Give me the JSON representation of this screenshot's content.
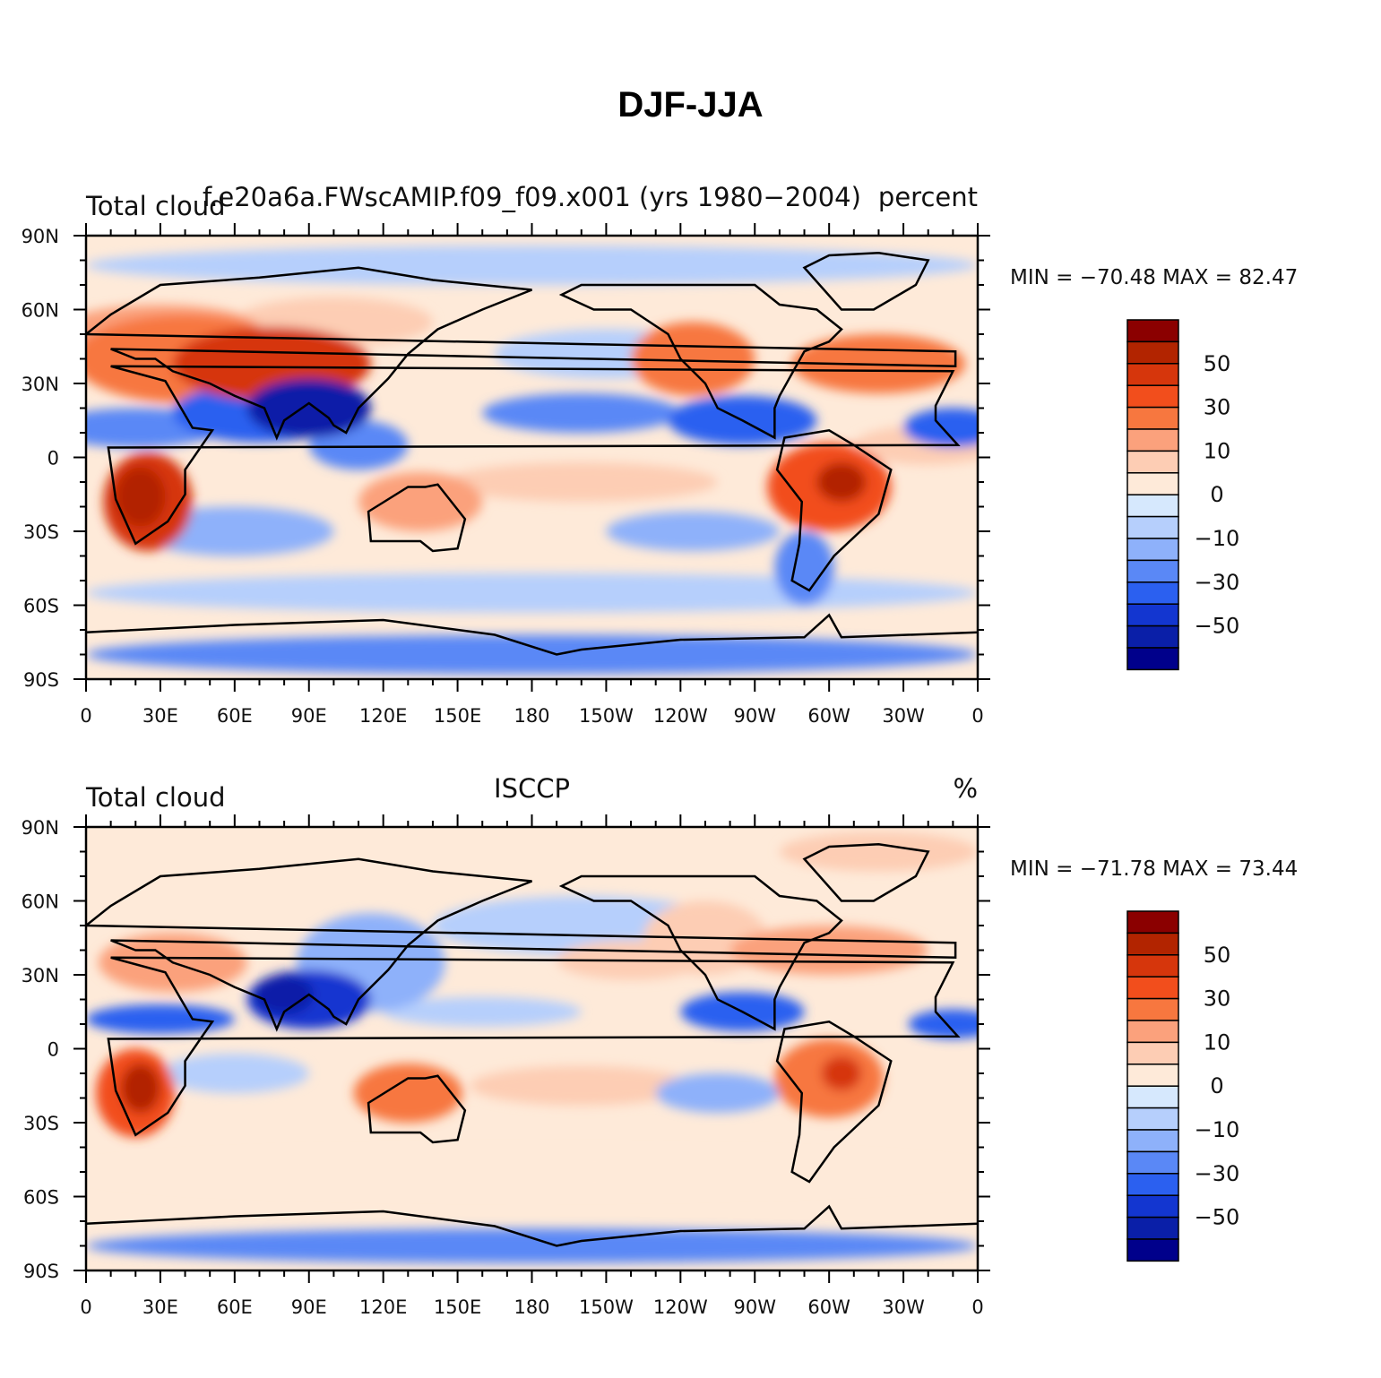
{
  "title": "DJF-JJA",
  "map": {
    "lon_tick_labels": [
      "0",
      "30E",
      "60E",
      "90E",
      "120E",
      "150E",
      "180",
      "150W",
      "120W",
      "90W",
      "60W",
      "30W",
      "0"
    ],
    "lat_tick_labels": [
      "90N",
      "60N",
      "30N",
      "0",
      "30S",
      "60S",
      "90S"
    ]
  },
  "colorbar": {
    "labels": [
      "50",
      "30",
      "10",
      "0",
      "−10",
      "−30",
      "−50"
    ],
    "colors": [
      "#8b0000",
      "#b22400",
      "#d6360c",
      "#f24e1c",
      "#f7773f",
      "#fba17c",
      "#fdcdb4",
      "#feead9",
      "#d6e8fd",
      "#b6cffc",
      "#8eb1fa",
      "#5a88f6",
      "#2b60f0",
      "#1336d0",
      "#0a1fa8",
      "#00008b"
    ]
  },
  "panels": [
    {
      "left_title": "Total cloud",
      "center_title": "f.e20a6a.FWscAMIP.f09_f09.x001 (yrs 1980−2004)",
      "right_title": "percent",
      "stats": "MIN = −70.48 MAX =   82.47",
      "min": -70.48,
      "max": 82.47
    },
    {
      "left_title": "Total cloud",
      "center_title": "ISCCP",
      "right_title": "%",
      "stats": "MIN = −71.78 MAX =   73.44",
      "min": -71.78,
      "max": 73.44
    }
  ]
}
